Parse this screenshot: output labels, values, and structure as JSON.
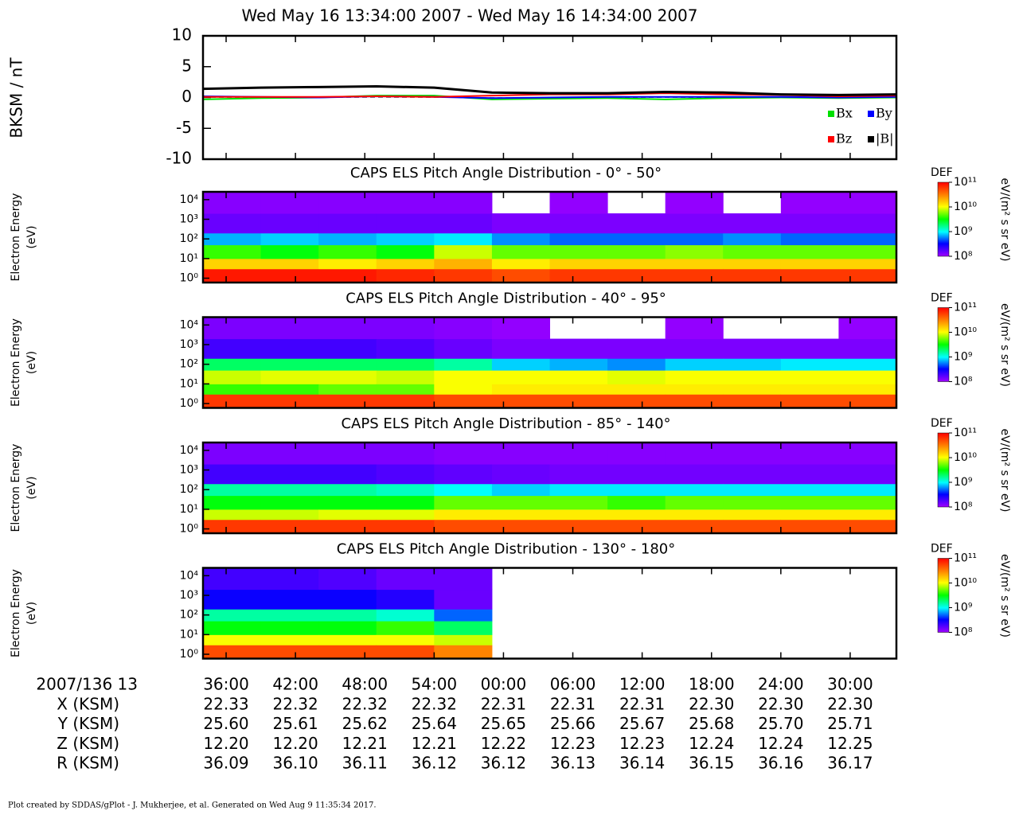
{
  "chart_data": [
    {
      "type": "line",
      "title": "Wed May 16 13:34:00 2007 - Wed May 16 14:34:00 2007",
      "y_label": "BKSM / nT",
      "x": [
        34,
        39,
        44,
        49,
        54,
        59,
        64,
        69,
        74,
        79,
        84,
        89,
        94
      ],
      "xlim": [
        34,
        94
      ],
      "xticks": [
        {
          "value": 36,
          "label": "36:00"
        },
        {
          "value": 42,
          "label": "42:00"
        },
        {
          "value": 48,
          "label": "48:00"
        },
        {
          "value": 54,
          "label": "54:00"
        },
        {
          "value": 60,
          "label": "00:00"
        },
        {
          "value": 66,
          "label": "06:00"
        },
        {
          "value": 72,
          "label": "12:00"
        },
        {
          "value": 78,
          "label": "18:00"
        },
        {
          "value": 84,
          "label": "24:00"
        },
        {
          "value": 90,
          "label": "30:00"
        }
      ],
      "ylim": [
        -10,
        10
      ],
      "yticks": [
        -10,
        -5,
        0,
        5,
        10
      ],
      "legend": "lower right",
      "series": [
        {
          "name": "Bx",
          "color": "#00e000",
          "values": [
            -0.3,
            -0.1,
            0.0,
            0.3,
            0.3,
            -0.3,
            -0.2,
            -0.1,
            -0.3,
            -0.1,
            0.0,
            -0.1,
            0.0
          ]
        },
        {
          "name": "By",
          "color": "#0000ff",
          "values": [
            0.2,
            0.1,
            0.0,
            0.2,
            0.1,
            -0.1,
            0.0,
            0.1,
            0.1,
            0.1,
            0.1,
            0.0,
            0.1
          ]
        },
        {
          "name": "Bz",
          "color": "#ff0000",
          "values": [
            0.1,
            0.1,
            0.1,
            0.2,
            0.1,
            0.3,
            0.5,
            0.5,
            0.7,
            0.5,
            0.4,
            0.2,
            0.3
          ]
        },
        {
          "name": "|B|",
          "color": "#000000",
          "values": [
            1.4,
            1.6,
            1.7,
            1.8,
            1.6,
            0.8,
            0.7,
            0.7,
            0.9,
            0.8,
            0.5,
            0.4,
            0.5
          ]
        }
      ]
    },
    {
      "type": "heatmap",
      "title": "CAPS ELS Pitch Angle Distribution - 0° - 50°",
      "y_label": [
        "Electron Energy",
        "(eV)"
      ],
      "x_bins": [
        34,
        39,
        44,
        49,
        54,
        59,
        64,
        69,
        74,
        79,
        84,
        89,
        94
      ],
      "y_bins": [
        0.6,
        3,
        10,
        50,
        200,
        2000,
        25000
      ],
      "xlim": [
        34,
        94
      ],
      "ylim": [
        0.6,
        25000
      ],
      "log_y": true,
      "yticks": [
        {
          "value": 1,
          "label": "10⁰"
        },
        {
          "value": 10,
          "label": "10¹"
        },
        {
          "value": 100,
          "label": "10²"
        },
        {
          "value": 1000,
          "label": "10³"
        },
        {
          "value": 10000,
          "label": "10⁴"
        }
      ],
      "colorbar": {
        "label": "DEF",
        "units": "eV/(m² s sr eV)",
        "lim": [
          100000000,
          100000000000
        ],
        "ticks": [
          {
            "value": 100000000,
            "label": "10⁸"
          },
          {
            "value": 1000000000,
            "label": "10⁹"
          },
          {
            "value": 10000000000,
            "label": "10¹⁰"
          },
          {
            "value": 100000000000,
            "label": "10¹¹"
          }
        ]
      },
      "values": [
        [
          80000000000,
          15000000000,
          4000000000,
          700000000,
          150000000,
          120000000
        ],
        [
          80000000000,
          15000000000,
          3000000000,
          800000000,
          150000000,
          120000000
        ],
        [
          80000000000,
          12000000000,
          4000000000,
          700000000,
          150000000,
          120000000
        ],
        [
          70000000000,
          15000000000,
          3000000000,
          800000000,
          150000000,
          120000000
        ],
        [
          60000000000,
          20000000000,
          8000000000,
          900000000,
          150000000,
          120000000
        ],
        [
          50000000000,
          12000000000,
          5000000000,
          600000000,
          130000000,
          null
        ],
        [
          60000000000,
          15000000000,
          5000000000,
          500000000,
          130000000,
          110000000
        ],
        [
          60000000000,
          15000000000,
          5000000000,
          500000000,
          130000000,
          null
        ],
        [
          60000000000,
          15000000000,
          6000000000,
          500000000,
          130000000,
          110000000
        ],
        [
          60000000000,
          15000000000,
          5000000000,
          600000000,
          130000000,
          null
        ],
        [
          60000000000,
          15000000000,
          5000000000,
          500000000,
          130000000,
          110000000
        ],
        [
          60000000000,
          15000000000,
          5000000000,
          500000000,
          130000000,
          110000000
        ]
      ]
    },
    {
      "type": "heatmap",
      "title": "CAPS ELS Pitch Angle Distribution - 40° - 95°",
      "y_label": [
        "Electron Energy",
        "(eV)"
      ],
      "x_bins": [
        34,
        39,
        44,
        49,
        54,
        59,
        64,
        69,
        74,
        79,
        84,
        89,
        94
      ],
      "y_bins": [
        0.6,
        3,
        10,
        50,
        200,
        2000,
        25000
      ],
      "xlim": [
        34,
        94
      ],
      "ylim": [
        0.6,
        25000
      ],
      "log_y": true,
      "yticks": [
        {
          "value": 1,
          "label": "10⁰"
        },
        {
          "value": 10,
          "label": "10¹"
        },
        {
          "value": 100,
          "label": "10²"
        },
        {
          "value": 1000,
          "label": "10³"
        },
        {
          "value": 10000,
          "label": "10⁴"
        }
      ],
      "colorbar": {
        "label": "DEF",
        "units": "eV/(m² s sr eV)",
        "lim": [
          100000000,
          100000000000
        ],
        "ticks": [
          {
            "value": 100000000,
            "label": "10⁸"
          },
          {
            "value": 1000000000,
            "label": "10⁹"
          },
          {
            "value": 10000000000,
            "label": "10¹⁰"
          },
          {
            "value": 100000000000,
            "label": "10¹¹"
          }
        ]
      },
      "values": [
        [
          60000000000,
          4000000000,
          8000000000,
          2000000000,
          200000000,
          130000000
        ],
        [
          60000000000,
          4000000000,
          9000000000,
          2000000000,
          200000000,
          130000000
        ],
        [
          60000000000,
          5000000000,
          9000000000,
          2000000000,
          200000000,
          130000000
        ],
        [
          60000000000,
          5000000000,
          8000000000,
          2000000000,
          180000000,
          130000000
        ],
        [
          50000000000,
          10000000000,
          10000000000,
          1500000000,
          150000000,
          120000000
        ],
        [
          50000000000,
          12000000000,
          10000000000,
          800000000,
          130000000,
          110000000
        ],
        [
          50000000000,
          12000000000,
          10000000000,
          700000000,
          130000000,
          null
        ],
        [
          50000000000,
          12000000000,
          9000000000,
          600000000,
          130000000,
          null
        ],
        [
          50000000000,
          12000000000,
          10000000000,
          800000000,
          130000000,
          110000000
        ],
        [
          50000000000,
          12000000000,
          10000000000,
          800000000,
          130000000,
          null
        ],
        [
          50000000000,
          12000000000,
          10000000000,
          900000000,
          130000000,
          null
        ],
        [
          50000000000,
          12000000000,
          10000000000,
          900000000,
          130000000,
          110000000
        ]
      ]
    },
    {
      "type": "heatmap",
      "title": "CAPS ELS Pitch Angle Distribution - 85° - 140°",
      "y_label": [
        "Electron Energy",
        "(eV)"
      ],
      "x_bins": [
        34,
        39,
        44,
        49,
        54,
        59,
        64,
        69,
        74,
        79,
        84,
        89,
        94
      ],
      "y_bins": [
        0.6,
        3,
        10,
        50,
        200,
        2000,
        25000
      ],
      "xlim": [
        34,
        94
      ],
      "ylim": [
        0.6,
        25000
      ],
      "log_y": true,
      "yticks": [
        {
          "value": 1,
          "label": "10⁰"
        },
        {
          "value": 10,
          "label": "10¹"
        },
        {
          "value": 100,
          "label": "10²"
        },
        {
          "value": 1000,
          "label": "10³"
        },
        {
          "value": 10000,
          "label": "10⁴"
        }
      ],
      "colorbar": {
        "label": "DEF",
        "units": "eV/(m² s sr eV)",
        "lim": [
          100000000,
          100000000000
        ],
        "ticks": [
          {
            "value": 100000000,
            "label": "10⁸"
          },
          {
            "value": 1000000000,
            "label": "10⁹"
          },
          {
            "value": 10000000000,
            "label": "10¹⁰"
          },
          {
            "value": 100000000000,
            "label": "10¹¹"
          }
        ]
      },
      "values": [
        [
          60000000000,
          8000000000,
          3000000000,
          1500000000,
          200000000,
          130000000
        ],
        [
          60000000000,
          8000000000,
          3000000000,
          1500000000,
          200000000,
          130000000
        ],
        [
          60000000000,
          9000000000,
          3000000000,
          1500000000,
          200000000,
          130000000
        ],
        [
          60000000000,
          9000000000,
          3000000000,
          1300000000,
          180000000,
          130000000
        ],
        [
          50000000000,
          12000000000,
          5000000000,
          1000000000,
          160000000,
          120000000
        ],
        [
          50000000000,
          12000000000,
          5000000000,
          800000000,
          150000000,
          120000000
        ],
        [
          50000000000,
          12000000000,
          5000000000,
          900000000,
          140000000,
          120000000
        ],
        [
          50000000000,
          12000000000,
          4000000000,
          900000000,
          140000000,
          120000000
        ],
        [
          50000000000,
          12000000000,
          5000000000,
          900000000,
          140000000,
          120000000
        ],
        [
          50000000000,
          12000000000,
          5000000000,
          900000000,
          140000000,
          120000000
        ],
        [
          50000000000,
          12000000000,
          5000000000,
          900000000,
          140000000,
          120000000
        ],
        [
          50000000000,
          12000000000,
          5000000000,
          900000000,
          140000000,
          120000000
        ]
      ]
    },
    {
      "type": "heatmap",
      "title": "CAPS ELS Pitch Angle Distribution - 130° - 180°",
      "y_label": [
        "Electron Energy",
        "(eV)"
      ],
      "x_bins": [
        34,
        39,
        44,
        49,
        54,
        59,
        64,
        69,
        74,
        79,
        84,
        89,
        94
      ],
      "y_bins": [
        0.6,
        3,
        10,
        50,
        200,
        2000,
        25000
      ],
      "xlim": [
        34,
        94
      ],
      "ylim": [
        0.6,
        25000
      ],
      "log_y": true,
      "yticks": [
        {
          "value": 1,
          "label": "10⁰"
        },
        {
          "value": 10,
          "label": "10¹"
        },
        {
          "value": 100,
          "label": "10²"
        },
        {
          "value": 1000,
          "label": "10³"
        },
        {
          "value": 10000,
          "label": "10⁴"
        }
      ],
      "colorbar": {
        "label": "DEF",
        "units": "eV/(m² s sr eV)",
        "lim": [
          100000000,
          100000000000
        ],
        "ticks": [
          {
            "value": 100000000,
            "label": "10⁸"
          },
          {
            "value": 1000000000,
            "label": "10⁹"
          },
          {
            "value": 10000000000,
            "label": "10¹⁰"
          },
          {
            "value": 100000000000,
            "label": "10¹¹"
          }
        ]
      },
      "values": [
        [
          50000000000,
          10000000000,
          3000000000,
          1500000000,
          300000000,
          200000000
        ],
        [
          50000000000,
          10000000000,
          3000000000,
          1500000000,
          300000000,
          200000000
        ],
        [
          50000000000,
          10000000000,
          3000000000,
          1500000000,
          300000000,
          180000000
        ],
        [
          50000000000,
          10000000000,
          4000000000,
          1200000000,
          250000000,
          150000000
        ],
        [
          30000000000,
          8000000000,
          2000000000,
          500000000,
          150000000,
          150000000
        ],
        [
          null,
          null,
          null,
          null,
          null,
          null
        ],
        [
          null,
          null,
          null,
          null,
          null,
          null
        ],
        [
          null,
          null,
          null,
          null,
          null,
          null
        ],
        [
          null,
          null,
          null,
          null,
          null,
          null
        ],
        [
          null,
          null,
          null,
          null,
          null,
          null
        ],
        [
          null,
          null,
          null,
          null,
          null,
          null
        ],
        [
          null,
          null,
          null,
          null,
          null,
          null
        ]
      ]
    }
  ],
  "ephemeris": {
    "label": "2007/136 13",
    "rows": [
      {
        "label": "X (KSM)",
        "values": [
          "22.33",
          "22.32",
          "22.32",
          "22.32",
          "22.31",
          "22.31",
          "22.31",
          "22.30",
          "22.30",
          "22.30"
        ]
      },
      {
        "label": "Y (KSM)",
        "values": [
          "25.60",
          "25.61",
          "25.62",
          "25.64",
          "25.65",
          "25.66",
          "25.67",
          "25.68",
          "25.70",
          "25.71"
        ]
      },
      {
        "label": "Z (KSM)",
        "values": [
          "12.20",
          "12.20",
          "12.21",
          "12.21",
          "12.22",
          "12.23",
          "12.23",
          "12.24",
          "12.24",
          "12.25"
        ]
      },
      {
        "label": "R (KSM)",
        "values": [
          "36.09",
          "36.10",
          "36.11",
          "36.12",
          "36.12",
          "36.13",
          "36.14",
          "36.15",
          "36.16",
          "36.17"
        ]
      }
    ]
  },
  "footer": "Plot created by SDDAS/gPlot - J. Mukherjee, et al.  Generated on Wed Aug 9 11:35:34 2017."
}
